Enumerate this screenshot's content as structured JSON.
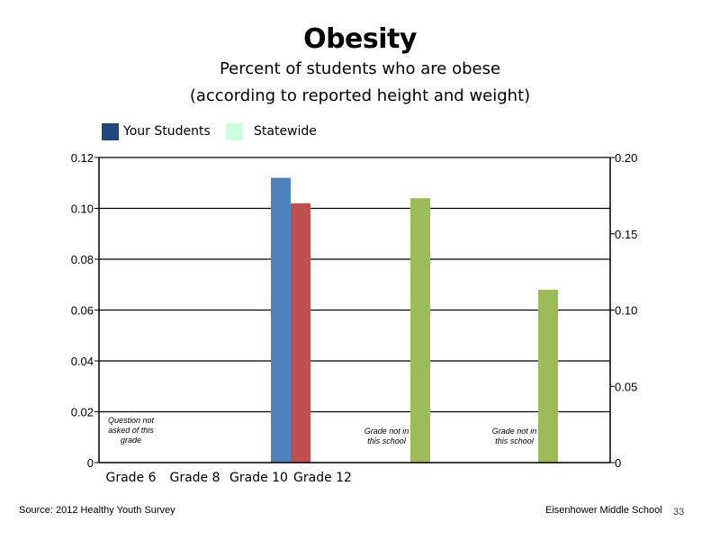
{
  "slide": {
    "title": "Obesity",
    "subtitle_line1": "Percent of students who are obese",
    "subtitle_line2": "(according to reported height and weight)",
    "footer_source": "Source: 2012 Healthy Youth Survey",
    "footer_school": "Eisenhower Middle  School",
    "page_number": "33"
  },
  "legend": [
    {
      "label": "Your Students",
      "color": "#1f497d"
    },
    {
      "label": "Statewide",
      "color": "#ccffdd"
    }
  ],
  "chart_data": {
    "type": "bar",
    "categories": [
      "Grade 6",
      "Grade 8",
      "Grade 10",
      "Grade 12"
    ],
    "y_left": {
      "ticks": [
        "0",
        "0.02",
        "0.04",
        "0.06",
        "0.08",
        "0.10",
        "0.12"
      ],
      "ylim": [
        0,
        0.12
      ]
    },
    "y_right": {
      "ticks": [
        "0",
        "0.05",
        "0.10",
        "0.15",
        "0.20"
      ],
      "ylim": [
        0,
        0.2
      ]
    },
    "bars": [
      {
        "category": "Grade 8",
        "value": 0.112,
        "color": "#4f81bd"
      },
      {
        "category": "Grade 8",
        "value": 0.102,
        "color": "#c0504d"
      },
      {
        "category": "Grade 10",
        "value": 0.104,
        "color": "#9bbb59"
      },
      {
        "category": "Grade 12",
        "value": 0.068,
        "color": "#9bbb59"
      }
    ],
    "annotations": [
      {
        "category_slot": 0,
        "lines": [
          "Question not",
          "asked of this",
          "grade"
        ]
      },
      {
        "category_slot": 4,
        "lines": [
          "Grade not in",
          "this school"
        ]
      },
      {
        "category_slot": 6,
        "lines": [
          "Grade not in",
          "this school"
        ]
      }
    ],
    "grid": true
  }
}
